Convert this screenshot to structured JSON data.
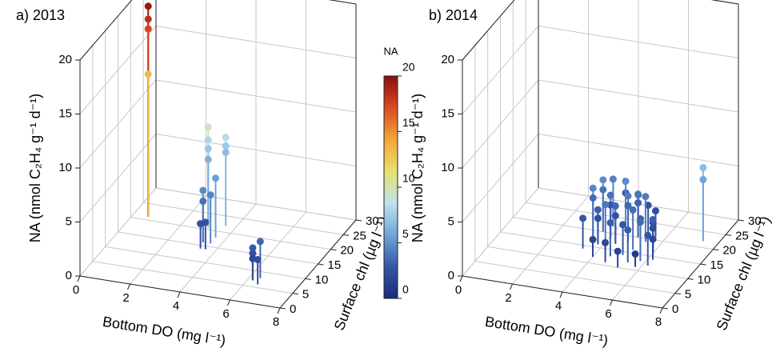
{
  "chart_data": [
    {
      "type": "scatter3d",
      "title": "a) 2013",
      "xlabel": "Bottom DO (mg l⁻¹)",
      "ylabel": "Surface chl (µg l⁻¹)",
      "zlabel": "NA (nmol C₂H₄ g⁻¹ d⁻¹)",
      "xlim": [
        0,
        8
      ],
      "xticks": [
        0,
        2,
        4,
        6,
        8
      ],
      "ylim": [
        0,
        30
      ],
      "yticks": [
        0,
        5,
        10,
        15,
        20,
        25,
        30
      ],
      "zlim": [
        0,
        20
      ],
      "zticks": [
        0,
        5,
        10,
        15,
        20
      ],
      "grid": true,
      "x": [
        0.6,
        0.6,
        0.6,
        0.6,
        3.1,
        3.0,
        3.0,
        3.0,
        3.6,
        3.6,
        3.6,
        3.3,
        3.3,
        3.6,
        3.6,
        3.4,
        3.6,
        6.2,
        6.2,
        6.4,
        6.2,
        6.5
      ],
      "y": [
        21,
        21,
        21,
        21,
        20,
        21,
        21,
        21,
        22,
        22,
        22,
        16,
        16,
        16,
        14,
        14,
        18,
        7,
        7,
        8,
        7,
        6
      ],
      "values": [
        19.5,
        18.3,
        17.4,
        13.2,
        9.5,
        8,
        7.2,
        6.2,
        8.2,
        7.4,
        6.8,
        4.8,
        3.8,
        4.5,
        2.5,
        2.3,
        5.5,
        3.0,
        2.5,
        3.4,
        2.0,
        2.3
      ]
    },
    {
      "type": "scatter3d",
      "title": "b) 2014",
      "xlabel": "Bottom DO (mg l⁻¹)",
      "ylabel": "Surface chl (µg l⁻¹)",
      "zlabel": "NA (nmol C₂H₄ g⁻¹ d⁻¹)",
      "xlim": [
        0,
        8
      ],
      "xticks": [
        0,
        2,
        4,
        6,
        8
      ],
      "ylim": [
        0,
        30
      ],
      "yticks": [
        0,
        5,
        10,
        15,
        20,
        25,
        30
      ],
      "zlim": [
        0,
        20
      ],
      "zticks": [
        0,
        5,
        10,
        15,
        20
      ],
      "grid": true,
      "x": [
        3.4,
        3.4,
        3.4,
        3.6,
        3.6,
        3.8,
        3.8,
        3.8,
        4.0,
        4.0,
        4.2,
        4.2,
        4.4,
        4.4,
        4.4,
        4.6,
        4.6,
        4.8,
        4.8,
        5.0,
        5.0,
        5.0,
        5.2,
        5.2,
        5.4,
        5.4,
        5.6,
        5.6,
        5.8,
        5.8,
        6.0,
        6.0,
        6.2,
        6.2,
        4.0,
        4.6,
        5.2,
        5.8,
        7.4,
        7.4
      ],
      "y": [
        18,
        18,
        14,
        20,
        20,
        16,
        16,
        22,
        19,
        19,
        15,
        23,
        17,
        17,
        21,
        13,
        24,
        18,
        18,
        14,
        20,
        20,
        16,
        22,
        12,
        19,
        15,
        21,
        13,
        18,
        16,
        16,
        12,
        14,
        12,
        11,
        10,
        11,
        22,
        22
      ],
      "values": [
        4.5,
        3.6,
        2.8,
        4.8,
        3.9,
        3.2,
        2.4,
        4.4,
        3.8,
        2.9,
        4.1,
        3.0,
        3.5,
        2.6,
        4.7,
        3.1,
        2.7,
        4.3,
        3.4,
        2.8,
        4.0,
        3.2,
        3.7,
        2.5,
        3.0,
        4.2,
        3.3,
        2.4,
        3.6,
        2.2,
        3.1,
        2.3,
        2.8,
        1.9,
        1.6,
        1.8,
        1.5,
        1.2,
        6.8,
        5.7
      ]
    }
  ],
  "colorbar": {
    "title": "NA",
    "lim": [
      0,
      20
    ],
    "ticks": [
      0,
      5,
      10,
      15,
      20
    ],
    "colormap": [
      "#1b2a7a",
      "#3556a8",
      "#6fa6d8",
      "#bfe2ee",
      "#e8e070",
      "#f2a638",
      "#dc4a22",
      "#8c0d0d"
    ]
  }
}
